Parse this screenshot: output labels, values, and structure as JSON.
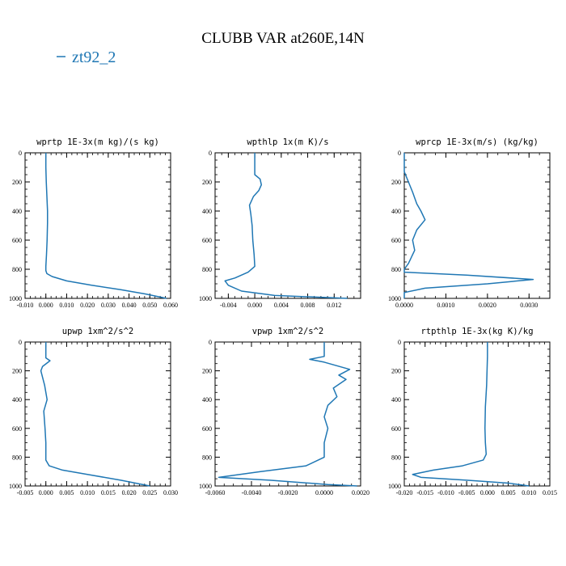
{
  "title": "CLUBB VAR at260E,14N",
  "legend": {
    "label": "zt92_2",
    "color": "#1f77b4"
  },
  "chart_data": [
    {
      "type": "line",
      "title": "wprtp  1E-3x(m kg)/(s kg)",
      "xlim": [
        -0.01,
        0.06
      ],
      "ylim": [
        1000,
        0
      ],
      "xticks": [
        -0.01,
        0.0,
        0.01,
        0.02,
        0.03,
        0.04,
        0.05,
        0.06
      ],
      "xtick_labels": [
        "-0.010",
        "0.000",
        "0.010",
        "0.020",
        "0.030",
        "0.040",
        "0.050",
        "0.060"
      ],
      "yticks": [
        0,
        200,
        400,
        600,
        800,
        1000
      ],
      "ytick_labels": [
        "0",
        "200",
        "400",
        "600",
        "800",
        "1000"
      ],
      "series": [
        {
          "name": "zt92_2",
          "x": [
            0.0,
            0.0,
            0.0002,
            0.0005,
            0.0008,
            0.0008,
            0.0006,
            0.0003,
            0.0,
            0.0,
            0.0005,
            0.003,
            0.01,
            0.022,
            0.036,
            0.048,
            0.058
          ],
          "y": [
            0,
            100,
            200,
            300,
            400,
            480,
            600,
            700,
            780,
            810,
            830,
            850,
            880,
            910,
            940,
            970,
            1000
          ]
        }
      ]
    },
    {
      "type": "line",
      "title": "wpthlp  1x(m K)/s",
      "xlim": [
        -0.006,
        0.016
      ],
      "ylim": [
        1000,
        0
      ],
      "xticks": [
        -0.004,
        0.0,
        0.004,
        0.008,
        0.012
      ],
      "xtick_labels": [
        "-0.004",
        "0.000",
        "0.004",
        "0.008",
        "0.012"
      ],
      "yticks": [
        0,
        200,
        400,
        600,
        800,
        1000
      ],
      "ytick_labels": [
        "0",
        "200",
        "400",
        "600",
        "800",
        "1000"
      ],
      "series": [
        {
          "name": "zt92_2",
          "x": [
            0.0,
            0.0,
            0.0,
            0.0008,
            0.001,
            0.0006,
            -0.0002,
            -0.0008,
            -0.0006,
            -0.0004,
            -0.0003,
            -0.0001,
            0.0,
            -0.001,
            -0.003,
            -0.0045,
            -0.004,
            -0.002,
            0.003,
            0.014
          ],
          "y": [
            0,
            100,
            150,
            180,
            220,
            260,
            300,
            360,
            420,
            500,
            600,
            700,
            780,
            820,
            860,
            880,
            910,
            950,
            980,
            1000
          ]
        }
      ]
    },
    {
      "type": "line",
      "title": "wprcp  1E-3x(m/s) (kg/kg)",
      "xlim": [
        0.0,
        0.0035
      ],
      "ylim": [
        1000,
        0
      ],
      "xticks": [
        0.0,
        0.001,
        0.002,
        0.003
      ],
      "xtick_labels": [
        "0.0000",
        "0.0010",
        "0.0020",
        "0.0030"
      ],
      "yticks": [
        0,
        200,
        400,
        600,
        800,
        1000
      ],
      "ytick_labels": [
        "0",
        "200",
        "400",
        "600",
        "800",
        "1000"
      ],
      "series": [
        {
          "name": "zt92_2",
          "x": [
            0.0,
            0.0,
            0.0001,
            0.0002,
            0.0003,
            0.0004,
            0.0005,
            0.0003,
            0.0002,
            0.00025,
            0.0001,
            0.0,
            0.0,
            0.0015,
            0.0031,
            0.002,
            0.0005,
            0.0,
            0.0
          ],
          "y": [
            0,
            130,
            200,
            270,
            350,
            400,
            460,
            530,
            600,
            670,
            760,
            800,
            820,
            840,
            870,
            900,
            930,
            960,
            1000
          ]
        }
      ]
    },
    {
      "type": "line",
      "title": "upwp  1xm^2/s^2",
      "xlim": [
        -0.005,
        0.03
      ],
      "ylim": [
        1000,
        0
      ],
      "xticks": [
        -0.005,
        0.0,
        0.005,
        0.01,
        0.015,
        0.02,
        0.025,
        0.03
      ],
      "xtick_labels": [
        "-0.005",
        "0.000",
        "0.005",
        "0.010",
        "0.015",
        "0.020",
        "0.025",
        "0.030"
      ],
      "yticks": [
        0,
        200,
        400,
        600,
        800,
        1000
      ],
      "ytick_labels": [
        "0",
        "200",
        "400",
        "600",
        "800",
        "1000"
      ],
      "series": [
        {
          "name": "zt92_2",
          "x": [
            0.0,
            0.0,
            0.001,
            -0.0008,
            -0.0012,
            -0.0003,
            0.0003,
            -0.0005,
            -0.0002,
            0.0,
            0.0,
            0.0008,
            0.004,
            0.01,
            0.018,
            0.025
          ],
          "y": [
            0,
            110,
            130,
            170,
            200,
            300,
            400,
            480,
            600,
            700,
            820,
            860,
            890,
            920,
            960,
            1000
          ]
        }
      ]
    },
    {
      "type": "line",
      "title": "vpwp  1xm^2/s^2",
      "xlim": [
        -0.006,
        0.002
      ],
      "ylim": [
        1000,
        0
      ],
      "xticks": [
        -0.006,
        -0.004,
        -0.002,
        0.0,
        0.002
      ],
      "xtick_labels": [
        "-0.0060",
        "-0.0040",
        "-0.0020",
        "0.0000",
        "0.0020"
      ],
      "yticks": [
        0,
        200,
        400,
        600,
        800,
        1000
      ],
      "ytick_labels": [
        "0",
        "200",
        "400",
        "600",
        "800",
        "1000"
      ],
      "series": [
        {
          "name": "zt92_2",
          "x": [
            0.0,
            0.0,
            -0.0008,
            0.0,
            0.0014,
            0.0008,
            0.0012,
            0.0005,
            0.0007,
            0.0002,
            0.0,
            0.0002,
            0.0,
            0.0,
            -0.001,
            -0.0035,
            -0.0058,
            -0.003,
            0.0002,
            0.0018
          ],
          "y": [
            0,
            100,
            120,
            140,
            190,
            230,
            260,
            320,
            380,
            440,
            520,
            600,
            700,
            800,
            860,
            900,
            940,
            960,
            990,
            1000
          ]
        }
      ]
    },
    {
      "type": "line",
      "title": "rtpthlp  1E-3x(kg K)/kg",
      "xlim": [
        -0.02,
        0.015
      ],
      "ylim": [
        1000,
        0
      ],
      "xticks": [
        -0.02,
        -0.015,
        -0.01,
        -0.005,
        0.0,
        0.005,
        0.01,
        0.015
      ],
      "xtick_labels": [
        "-0.020",
        "-0.015",
        "-0.010",
        "-0.005",
        "0.000",
        "0.005",
        "0.010",
        "0.015"
      ],
      "yticks": [
        0,
        200,
        400,
        600,
        800,
        1000
      ],
      "ytick_labels": [
        "0",
        "200",
        "400",
        "600",
        "800",
        "1000"
      ],
      "series": [
        {
          "name": "zt92_2",
          "x": [
            0.0,
            0.0,
            -0.0002,
            -0.0005,
            -0.0006,
            -0.0005,
            -0.0003,
            -0.001,
            -0.006,
            -0.013,
            -0.018,
            -0.016,
            -0.005,
            0.005,
            0.01
          ],
          "y": [
            0,
            100,
            300,
            450,
            600,
            700,
            780,
            820,
            860,
            890,
            920,
            940,
            960,
            980,
            1000
          ]
        }
      ]
    }
  ]
}
